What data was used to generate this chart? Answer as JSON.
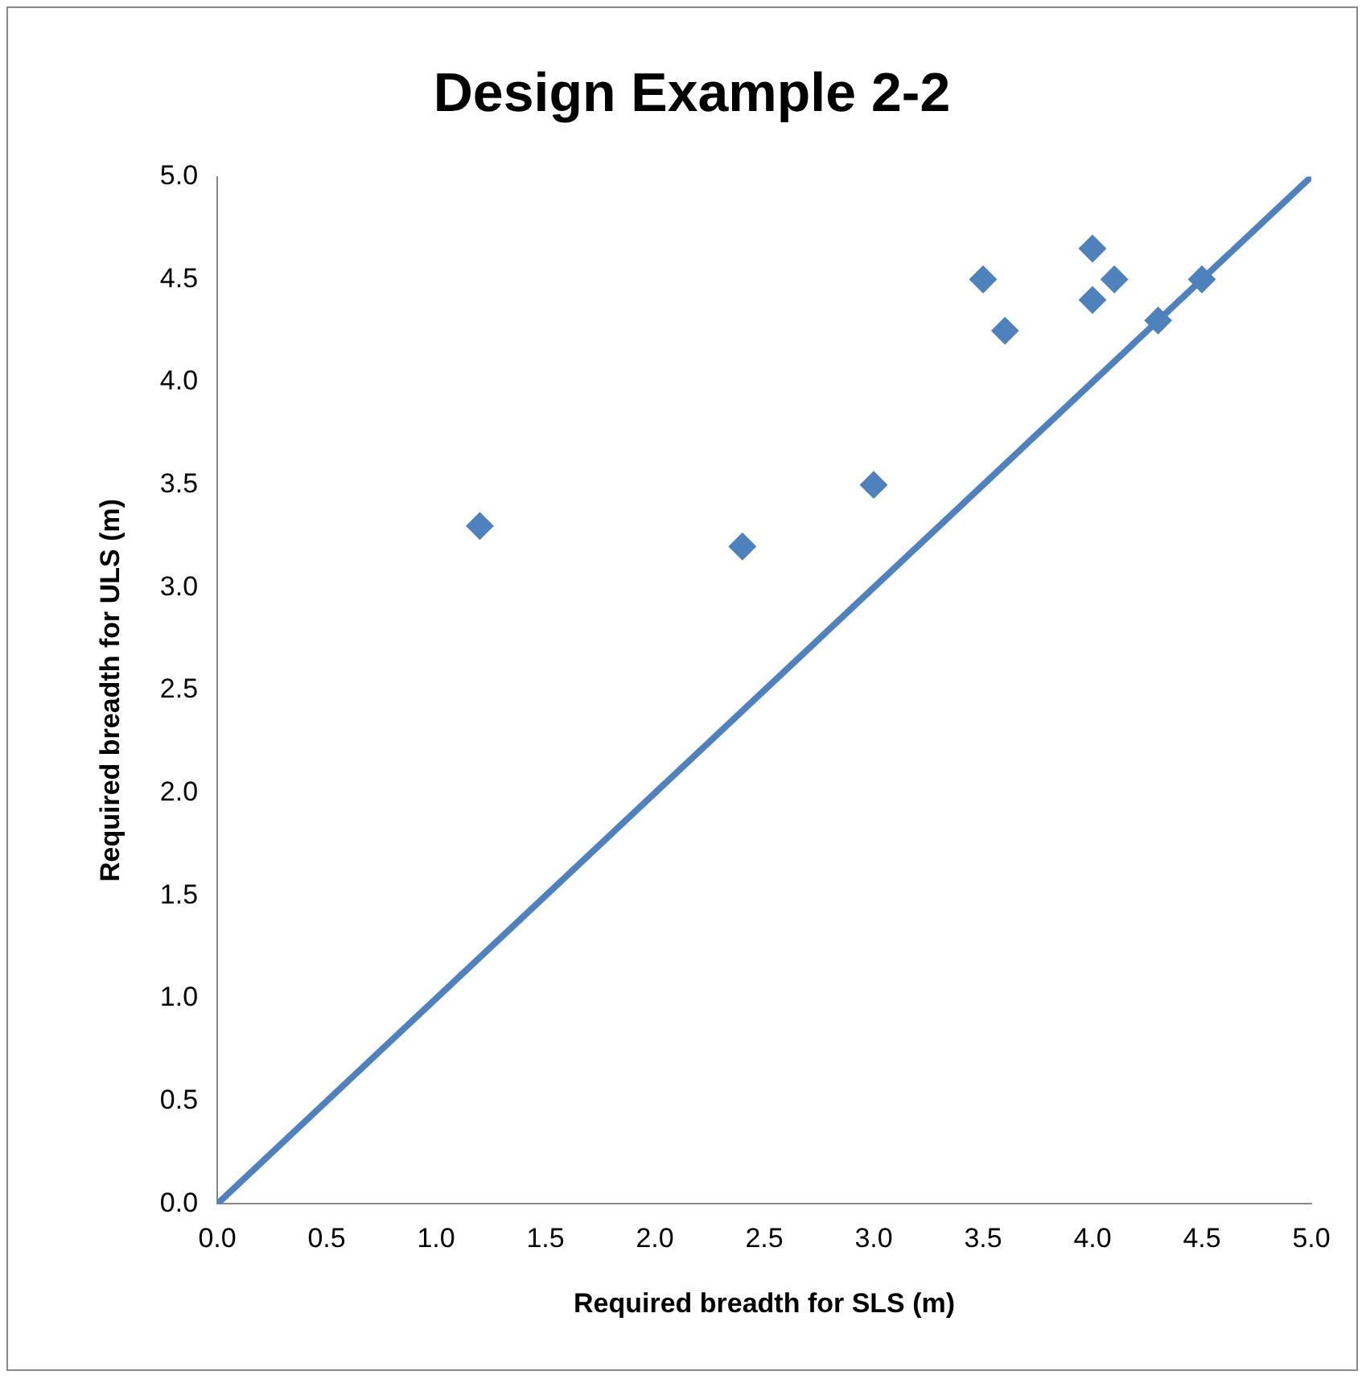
{
  "chart_data": {
    "type": "scatter",
    "title": "Design Example 2-2",
    "xlabel": "Required breadth for SLS (m)",
    "ylabel": "Required breadth for ULS (m)",
    "xlim": [
      0,
      5
    ],
    "ylim": [
      0,
      5
    ],
    "xticks": [
      {
        "value": 0,
        "label": "0.0"
      },
      {
        "value": 0.5,
        "label": "0.5"
      },
      {
        "value": 1,
        "label": "1.0"
      },
      {
        "value": 1.5,
        "label": "1.5"
      },
      {
        "value": 2,
        "label": "2.0"
      },
      {
        "value": 2.5,
        "label": "2.5"
      },
      {
        "value": 3,
        "label": "3.0"
      },
      {
        "value": 3.5,
        "label": "3.5"
      },
      {
        "value": 4,
        "label": "4.0"
      },
      {
        "value": 4.5,
        "label": "4.5"
      },
      {
        "value": 5,
        "label": "5.0"
      }
    ],
    "yticks": [
      {
        "value": 0,
        "label": "0.0"
      },
      {
        "value": 0.5,
        "label": "0.5"
      },
      {
        "value": 1,
        "label": "1.0"
      },
      {
        "value": 1.5,
        "label": "1.5"
      },
      {
        "value": 2,
        "label": "2.0"
      },
      {
        "value": 2.5,
        "label": "2.5"
      },
      {
        "value": 3,
        "label": "3.0"
      },
      {
        "value": 3.5,
        "label": "3.5"
      },
      {
        "value": 4,
        "label": "4.0"
      },
      {
        "value": 4.5,
        "label": "4.5"
      },
      {
        "value": 5,
        "label": "5.0"
      }
    ],
    "grid": false,
    "legend": false,
    "marker": "diamond",
    "series": [
      {
        "color": "#4f81bd",
        "x": [
          1.2,
          2.4,
          3.0,
          3.5,
          3.6,
          4.0,
          4.0,
          4.1,
          4.3,
          4.5
        ],
        "values": [
          3.3,
          3.2,
          3.5,
          4.5,
          4.25,
          4.65,
          4.4,
          4.5,
          4.3,
          4.5
        ]
      },
      {
        "type": "line",
        "color": "#4f81bd",
        "marker": "none",
        "line_style": "solid",
        "x": [
          0,
          5
        ],
        "values": [
          0,
          5
        ]
      }
    ]
  }
}
